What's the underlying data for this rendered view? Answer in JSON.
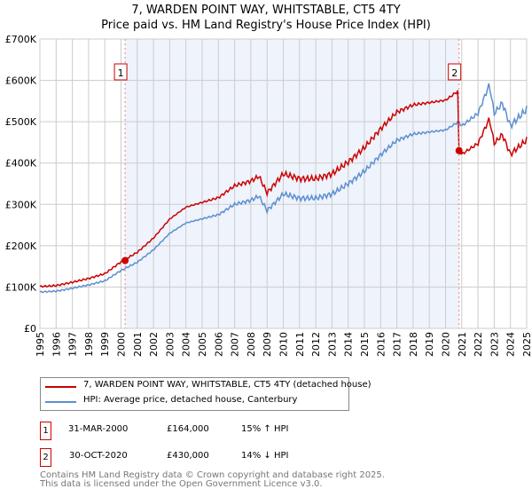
{
  "title_line1": "7, WARDEN POINT WAY, WHITSTABLE, CT5 4TY",
  "title_line2": "Price paid vs. HM Land Registry's House Price Index (HPI)",
  "chart_data": {
    "type": "line",
    "ylim": [
      0,
      700000
    ],
    "xlim": [
      1995,
      2025
    ],
    "y_ticks": [
      {
        "v": 0,
        "label": "£0"
      },
      {
        "v": 100000,
        "label": "£100K"
      },
      {
        "v": 200000,
        "label": "£200K"
      },
      {
        "v": 300000,
        "label": "£300K"
      },
      {
        "v": 400000,
        "label": "£400K"
      },
      {
        "v": 500000,
        "label": "£500K"
      },
      {
        "v": 600000,
        "label": "£600K"
      },
      {
        "v": 700000,
        "label": "£700K"
      }
    ],
    "x_ticks": [
      "1995",
      "1996",
      "1997",
      "1998",
      "1999",
      "2000",
      "2001",
      "2002",
      "2003",
      "2004",
      "2005",
      "2006",
      "2007",
      "2008",
      "2009",
      "2010",
      "2011",
      "2012",
      "2013",
      "2014",
      "2015",
      "2016",
      "2017",
      "2018",
      "2019",
      "2020",
      "2021",
      "2022",
      "2023",
      "2024",
      "2025"
    ],
    "grid": true,
    "colors": {
      "property": "#cc0000",
      "hpi": "#5b8fd0",
      "shade": "#eef3fc"
    },
    "hpi_series": {
      "name": "HPI: Average price, detached house, Canterbury",
      "x": [
        1995,
        1996,
        1997,
        1998,
        1999,
        2000,
        2001,
        2002,
        2003,
        2004,
        2005,
        2006,
        2007,
        2008,
        2008.5,
        2009,
        2010,
        2011,
        2012,
        2013,
        2014,
        2015,
        2016,
        2017,
        2018,
        2019,
        2020,
        2020.8,
        2021,
        2022,
        2022.7,
        2023,
        2023.5,
        2024,
        2024.5,
        2025
      ],
      "y": [
        88000,
        90000,
        97000,
        105000,
        115000,
        140000,
        160000,
        190000,
        230000,
        255000,
        265000,
        275000,
        300000,
        310000,
        320000,
        285000,
        325000,
        315000,
        315000,
        325000,
        350000,
        380000,
        420000,
        455000,
        470000,
        475000,
        480000,
        500000,
        490000,
        520000,
        590000,
        520000,
        545000,
        490000,
        510000,
        530000
      ]
    },
    "property_series": {
      "name": "7, WARDEN POINT WAY, WHITSTABLE, CT5 4TY (detached house)",
      "ratio_before": 1.15,
      "ratio_after": 0.86,
      "switch_x": 2020.83
    },
    "sales": [
      {
        "id": "1",
        "x": 2000.25,
        "price": 164000,
        "date": "31-MAR-2000",
        "price_label": "£164,000",
        "hpi_label": "15% ↑ HPI"
      },
      {
        "id": "2",
        "x": 2020.83,
        "price": 430000,
        "date": "30-OCT-2020",
        "price_label": "£430,000",
        "hpi_label": "14% ↓ HPI"
      }
    ]
  },
  "legend": {
    "property": "7, WARDEN POINT WAY, WHITSTABLE, CT5 4TY (detached house)",
    "hpi": "HPI: Average price, detached house, Canterbury"
  },
  "footer": {
    "line1": "Contains HM Land Registry data © Crown copyright and database right 2025.",
    "line2": "This data is licensed under the Open Government Licence v3.0."
  }
}
